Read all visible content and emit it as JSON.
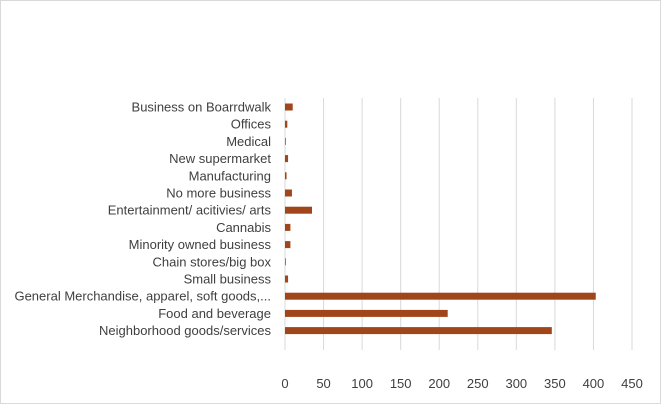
{
  "chart_data": {
    "type": "bar",
    "orientation": "horizontal",
    "categories": [
      "Business on Boarrdwalk",
      "Offices",
      "Medical",
      "New supermarket",
      "Manufacturing",
      "No more business",
      "Entertainment/ acitivies/ arts",
      "Cannabis",
      "Minority owned business",
      "Chain stores/big box",
      "Small business",
      "General Merchandise, apparel, soft goods,...",
      "Food and beverage",
      "Neighborhood goods/services"
    ],
    "values": [
      10,
      3,
      1,
      4,
      2,
      9,
      35,
      7,
      7,
      1,
      4,
      403,
      211,
      346
    ],
    "xlim": [
      0,
      450
    ],
    "xticks": [
      0,
      50,
      100,
      150,
      200,
      250,
      300,
      350,
      400,
      450
    ],
    "grid": true,
    "bar_color": "#a0461a",
    "title": "",
    "xlabel": "",
    "ylabel": ""
  }
}
